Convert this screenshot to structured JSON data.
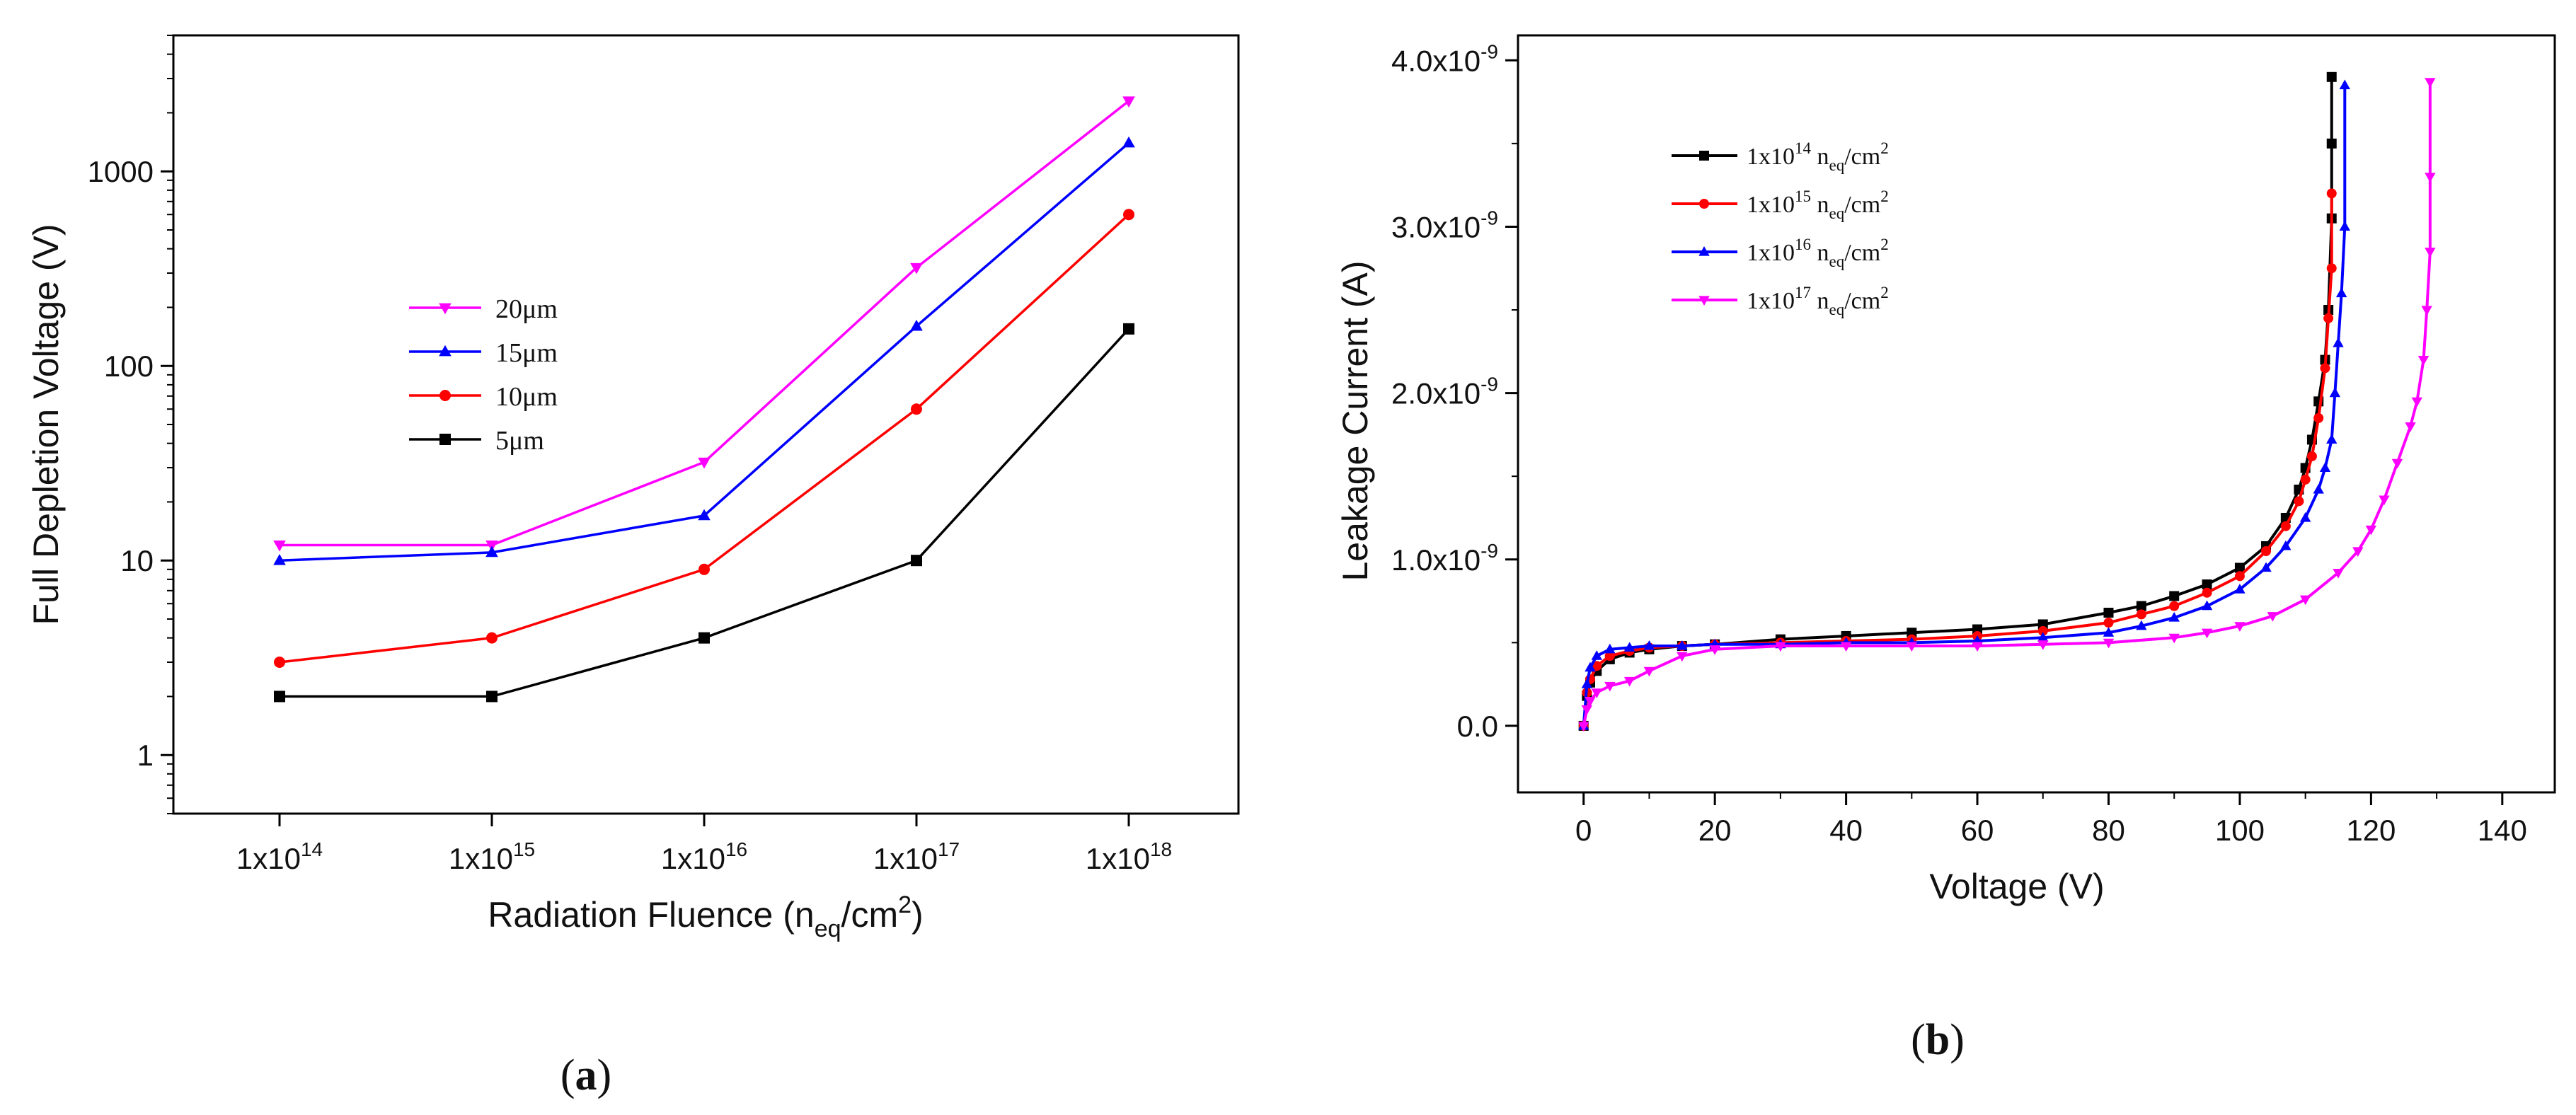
{
  "chart_data": [
    {
      "id": "a",
      "type": "line",
      "panel_label": "a",
      "xlabel": "Radiation Fluence (n",
      "xlabel_sub": "eq",
      "xlabel_unit": "/cm",
      "xlabel_sup": "2",
      "xlabel_close": ")",
      "ylabel": "Full Depletion Voltage (V)",
      "yscale": "log",
      "ylim": [
        0.5,
        5000
      ],
      "yticks": [
        1,
        10,
        100,
        1000
      ],
      "ytick_labels": [
        "1",
        "10",
        "100",
        "1000"
      ],
      "categories": [
        "1x10^14",
        "1x10^15",
        "1x10^16",
        "1x10^17",
        "1x10^18"
      ],
      "xtick_labels": [
        {
          "base": "1x10",
          "exp": "14"
        },
        {
          "base": "1x10",
          "exp": "15"
        },
        {
          "base": "1x10",
          "exp": "16"
        },
        {
          "base": "1x10",
          "exp": "17"
        },
        {
          "base": "1x10",
          "exp": "18"
        }
      ],
      "legend_position": "center-left",
      "series": [
        {
          "name": "20μm",
          "color": "#ff00ff",
          "marker": "triangle-down",
          "values": [
            12,
            12,
            32,
            320,
            2300
          ]
        },
        {
          "name": "15μm",
          "color": "#0000ff",
          "marker": "triangle-up",
          "values": [
            10,
            11,
            17,
            160,
            1400
          ]
        },
        {
          "name": "10μm",
          "color": "#ff0000",
          "marker": "circle",
          "values": [
            3,
            4,
            9,
            60,
            600
          ]
        },
        {
          "name": "5μm",
          "color": "#000000",
          "marker": "square",
          "values": [
            2,
            2,
            4,
            10,
            155
          ]
        }
      ]
    },
    {
      "id": "b",
      "type": "line",
      "panel_label": "b",
      "xlabel": "Voltage (V)",
      "ylabel": "Leakage Current (A)",
      "xlim": [
        -10,
        148
      ],
      "ylim": [
        -0.4,
        4.15
      ],
      "y_multiplier": "1e-9",
      "xticks": [
        0,
        20,
        40,
        60,
        80,
        100,
        120,
        140
      ],
      "xtick_labels": [
        "0",
        "20",
        "40",
        "60",
        "80",
        "100",
        "120",
        "140"
      ],
      "yticks": [
        0,
        1,
        2,
        3,
        4
      ],
      "ytick_labels": [
        {
          "base": "0.0",
          "exp": ""
        },
        {
          "base": "1.0x10",
          "exp": "-9"
        },
        {
          "base": "2.0x10",
          "exp": "-9"
        },
        {
          "base": "3.0x10",
          "exp": "-9"
        },
        {
          "base": "4.0x10",
          "exp": "-9"
        }
      ],
      "legend_position": "top-left",
      "series": [
        {
          "name": "1x10^14 n_eq/cm^2",
          "label_base": "1x10",
          "label_exp": "14",
          "label_mid": " n",
          "label_sub": "eq",
          "label_unit": "/cm",
          "label_sup": "2",
          "color": "#000000",
          "marker": "square",
          "x": [
            0,
            0.5,
            1,
            2,
            4,
            7,
            10,
            15,
            20,
            30,
            40,
            50,
            60,
            70,
            80,
            85,
            90,
            95,
            100,
            104,
            107,
            109,
            110,
            111,
            112,
            113,
            113.5,
            114,
            114,
            114
          ],
          "y": [
            0,
            0.18,
            0.26,
            0.33,
            0.4,
            0.44,
            0.46,
            0.48,
            0.49,
            0.52,
            0.54,
            0.56,
            0.58,
            0.61,
            0.68,
            0.72,
            0.78,
            0.85,
            0.95,
            1.08,
            1.25,
            1.42,
            1.55,
            1.72,
            1.95,
            2.2,
            2.5,
            3.05,
            3.5,
            3.9
          ]
        },
        {
          "name": "1x10^15 n_eq/cm^2",
          "label_base": "1x10",
          "label_exp": "15",
          "label_mid": " n",
          "label_sub": "eq",
          "label_unit": "/cm",
          "label_sup": "2",
          "color": "#ff0000",
          "marker": "circle",
          "x": [
            0,
            0.5,
            1,
            2,
            4,
            7,
            10,
            15,
            20,
            30,
            40,
            50,
            60,
            70,
            80,
            85,
            90,
            95,
            100,
            104,
            107,
            109,
            110,
            111,
            112,
            113,
            113.5,
            114,
            114
          ],
          "y": [
            0,
            0.2,
            0.28,
            0.36,
            0.42,
            0.45,
            0.47,
            0.48,
            0.49,
            0.5,
            0.51,
            0.52,
            0.54,
            0.57,
            0.62,
            0.67,
            0.72,
            0.8,
            0.9,
            1.05,
            1.2,
            1.35,
            1.48,
            1.62,
            1.85,
            2.15,
            2.45,
            2.75,
            3.2
          ]
        },
        {
          "name": "1x10^16 n_eq/cm^2",
          "label_base": "1x10",
          "label_exp": "16",
          "label_mid": " n",
          "label_sub": "eq",
          "label_unit": "/cm",
          "label_sup": "2",
          "color": "#0000ff",
          "marker": "triangle-up",
          "x": [
            0,
            0.5,
            1,
            2,
            4,
            7,
            10,
            15,
            20,
            30,
            40,
            50,
            60,
            70,
            80,
            85,
            90,
            95,
            100,
            104,
            107,
            110,
            112,
            113,
            114,
            114.5,
            115,
            115.5,
            116,
            116
          ],
          "y": [
            0,
            0.25,
            0.35,
            0.42,
            0.46,
            0.47,
            0.48,
            0.48,
            0.49,
            0.49,
            0.5,
            0.5,
            0.51,
            0.53,
            0.56,
            0.6,
            0.65,
            0.72,
            0.82,
            0.95,
            1.08,
            1.25,
            1.42,
            1.55,
            1.72,
            2.0,
            2.3,
            2.6,
            3.0,
            3.85
          ]
        },
        {
          "name": "1x10^17 n_eq/cm^2",
          "label_base": "1x10",
          "label_exp": "17",
          "label_mid": " n",
          "label_sub": "eq",
          "label_unit": "/cm",
          "label_sup": "2",
          "color": "#ff00ff",
          "marker": "triangle-down",
          "x": [
            0,
            0.5,
            1,
            2,
            4,
            7,
            10,
            15,
            20,
            30,
            40,
            50,
            60,
            70,
            80,
            90,
            95,
            100,
            105,
            110,
            115,
            118,
            120,
            122,
            124,
            126,
            127,
            128,
            128.5,
            129,
            129,
            129
          ],
          "y": [
            0,
            0.1,
            0.15,
            0.2,
            0.24,
            0.27,
            0.33,
            0.42,
            0.46,
            0.48,
            0.48,
            0.48,
            0.48,
            0.49,
            0.5,
            0.53,
            0.56,
            0.6,
            0.66,
            0.76,
            0.92,
            1.05,
            1.18,
            1.36,
            1.58,
            1.8,
            1.95,
            2.2,
            2.5,
            2.85,
            3.3,
            3.87
          ]
        }
      ]
    }
  ]
}
